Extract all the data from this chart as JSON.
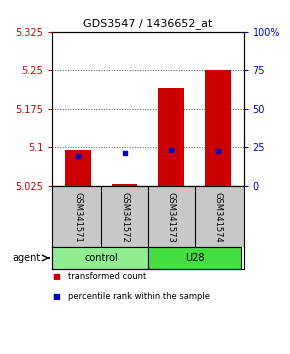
{
  "title": "GDS3547 / 1436652_at",
  "samples": [
    "GSM341571",
    "GSM341572",
    "GSM341573",
    "GSM341574"
  ],
  "red_bar_tops": [
    5.095,
    5.028,
    5.215,
    5.25
  ],
  "blue_square_vals": [
    5.083,
    5.088,
    5.094,
    5.092
  ],
  "baseline": 5.025,
  "ylim": [
    5.025,
    5.325
  ],
  "yticks": [
    5.025,
    5.1,
    5.175,
    5.25,
    5.325
  ],
  "ytick_labels": [
    "5.025",
    "5.1",
    "5.175",
    "5.25",
    "5.325"
  ],
  "y2ticks": [
    0,
    25,
    50,
    75,
    100
  ],
  "y2tick_labels": [
    "0",
    "25",
    "50",
    "75",
    "100%"
  ],
  "bar_color": "#cc0000",
  "square_color": "#0000cc",
  "bar_width": 0.55,
  "grid_color": "#555555",
  "background_color": "#ffffff",
  "label_area_color": "#c8c8c8",
  "group_color_control": "#90ee90",
  "group_color_u28": "#44dd44",
  "legend_items": [
    {
      "color": "#cc0000",
      "label": "transformed count"
    },
    {
      "color": "#0000cc",
      "label": "percentile rank within the sample"
    }
  ]
}
